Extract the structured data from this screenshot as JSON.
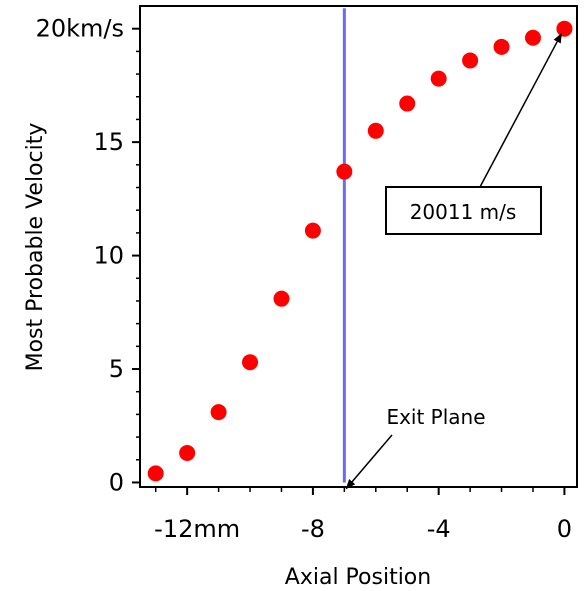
{
  "chart_data": {
    "type": "scatter",
    "title": "",
    "xlabel": "Axial Position",
    "ylabel": "Most Probable Velocity",
    "xlim": [
      -13.5,
      0.4
    ],
    "ylim": [
      -0.2,
      21
    ],
    "grid": false,
    "x_ticks": [
      {
        "value": -12,
        "label": "-12mm"
      },
      {
        "value": -8,
        "label": "-8"
      },
      {
        "value": -4,
        "label": "-4"
      },
      {
        "value": 0,
        "label": "0"
      }
    ],
    "y_ticks": [
      {
        "value": 0,
        "label": "0"
      },
      {
        "value": 5,
        "label": "5"
      },
      {
        "value": 10,
        "label": "10"
      },
      {
        "value": 15,
        "label": "15"
      },
      {
        "value": 20,
        "label": "20km/s"
      }
    ],
    "series": [
      {
        "color": "#ff0000",
        "x": [
          -13,
          -12,
          -11,
          -10,
          -9,
          -8,
          -7,
          -6,
          -5,
          -4,
          -3,
          -2,
          -1,
          0
        ],
        "y": [
          0.4,
          1.3,
          3.1,
          5.3,
          8.1,
          11.1,
          13.7,
          15.5,
          16.7,
          17.8,
          18.6,
          19.2,
          19.6,
          20.0
        ]
      }
    ],
    "vline": {
      "x": -7,
      "y_from": 0,
      "y_to": 20.9,
      "color": "#6b6bf0"
    },
    "annotations": [
      {
        "text": "20011 m/s",
        "boxed": true,
        "target": [
          0,
          20.0
        ]
      },
      {
        "text": "Exit Plane",
        "boxed": false,
        "target": [
          -7,
          0
        ]
      }
    ]
  }
}
